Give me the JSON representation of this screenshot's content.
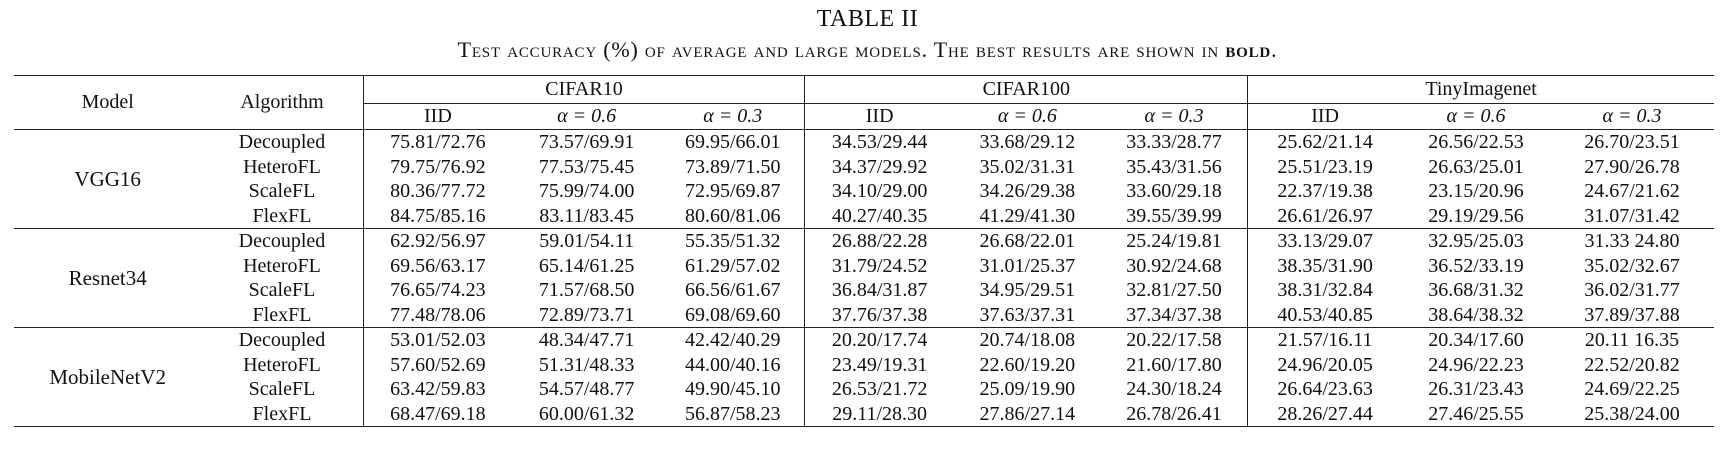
{
  "caption": {
    "table_number": "TABLE II",
    "title_prefix": "Test accuracy (%) of average and large models. The best results are shown in ",
    "title_bold": "bold",
    "title_suffix": "."
  },
  "header": {
    "model": "Model",
    "algorithm": "Algorithm",
    "datasets": [
      "CIFAR10",
      "CIFAR100",
      "TinyImagenet"
    ],
    "settings": [
      "IID",
      "α = 0.6",
      "α = 0.3"
    ]
  },
  "blocks": [
    {
      "model": "VGG16",
      "rows": [
        {
          "algorithm": "Decoupled",
          "values": [
            "75.81/72.76",
            "73.57/69.91",
            "69.95/66.01",
            "34.53/29.44",
            "33.68/29.12",
            "33.33/28.77",
            "25.62/21.14",
            "26.56/22.53",
            "26.70/23.51"
          ],
          "best": false
        },
        {
          "algorithm": "HeteroFL",
          "values": [
            "79.75/76.92",
            "77.53/75.45",
            "73.89/71.50",
            "34.37/29.92",
            "35.02/31.31",
            "35.43/31.56",
            "25.51/23.19",
            "26.63/25.01",
            "27.90/26.78"
          ],
          "best": false
        },
        {
          "algorithm": "ScaleFL",
          "values": [
            "80.36/77.72",
            "75.99/74.00",
            "72.95/69.87",
            "34.10/29.00",
            "34.26/29.38",
            "33.60/29.18",
            "22.37/19.38",
            "23.15/20.96",
            "24.67/21.62"
          ],
          "best": false
        },
        {
          "algorithm": "FlexFL",
          "values": [
            "84.75/85.16",
            "83.11/83.45",
            "80.60/81.06",
            "40.27/40.35",
            "41.29/41.30",
            "39.55/39.99",
            "26.61/26.97",
            "29.19/29.56",
            "31.07/31.42"
          ],
          "best": true
        }
      ]
    },
    {
      "model": "Resnet34",
      "rows": [
        {
          "algorithm": "Decoupled",
          "values": [
            "62.92/56.97",
            "59.01/54.11",
            "55.35/51.32",
            "26.88/22.28",
            "26.68/22.01",
            "25.24/19.81",
            "33.13/29.07",
            "32.95/25.03",
            "31.33 24.80"
          ],
          "best": false
        },
        {
          "algorithm": "HeteroFL",
          "values": [
            "69.56/63.17",
            "65.14/61.25",
            "61.29/57.02",
            "31.79/24.52",
            "31.01/25.37",
            "30.92/24.68",
            "38.35/31.90",
            "36.52/33.19",
            "35.02/32.67"
          ],
          "best": false
        },
        {
          "algorithm": "ScaleFL",
          "values": [
            "76.65/74.23",
            "71.57/68.50",
            "66.56/61.67",
            "36.84/31.87",
            "34.95/29.51",
            "32.81/27.50",
            "38.31/32.84",
            "36.68/31.32",
            "36.02/31.77"
          ],
          "best": false
        },
        {
          "algorithm": "FlexFL",
          "values": [
            "77.48/78.06",
            "72.89/73.71",
            "69.08/69.60",
            "37.76/37.38",
            "37.63/37.31",
            "37.34/37.38",
            "40.53/40.85",
            "38.64/38.32",
            "37.89/37.88"
          ],
          "best": true
        }
      ]
    },
    {
      "model": "MobileNetV2",
      "rows": [
        {
          "algorithm": "Decoupled",
          "values": [
            "53.01/52.03",
            "48.34/47.71",
            "42.42/40.29",
            "20.20/17.74",
            "20.74/18.08",
            "20.22/17.58",
            "21.57/16.11",
            "20.34/17.60",
            "20.11 16.35"
          ],
          "best": false
        },
        {
          "algorithm": "HeteroFL",
          "values": [
            "57.60/52.69",
            "51.31/48.33",
            "44.00/40.16",
            "23.49/19.31",
            "22.60/19.20",
            "21.60/17.80",
            "24.96/20.05",
            "24.96/22.23",
            "22.52/20.82"
          ],
          "best": false
        },
        {
          "algorithm": "ScaleFL",
          "values": [
            "63.42/59.83",
            "54.57/48.77",
            "49.90/45.10",
            "26.53/21.72",
            "25.09/19.90",
            "24.30/18.24",
            "26.64/23.63",
            "26.31/23.43",
            "24.69/22.25"
          ],
          "best": false
        },
        {
          "algorithm": "FlexFL",
          "values": [
            "68.47/69.18",
            "60.00/61.32",
            "56.87/58.23",
            "29.11/28.30",
            "27.86/27.14",
            "26.78/26.41",
            "28.26/27.44",
            "27.46/25.55",
            "25.38/24.00"
          ],
          "best": true
        }
      ]
    }
  ]
}
